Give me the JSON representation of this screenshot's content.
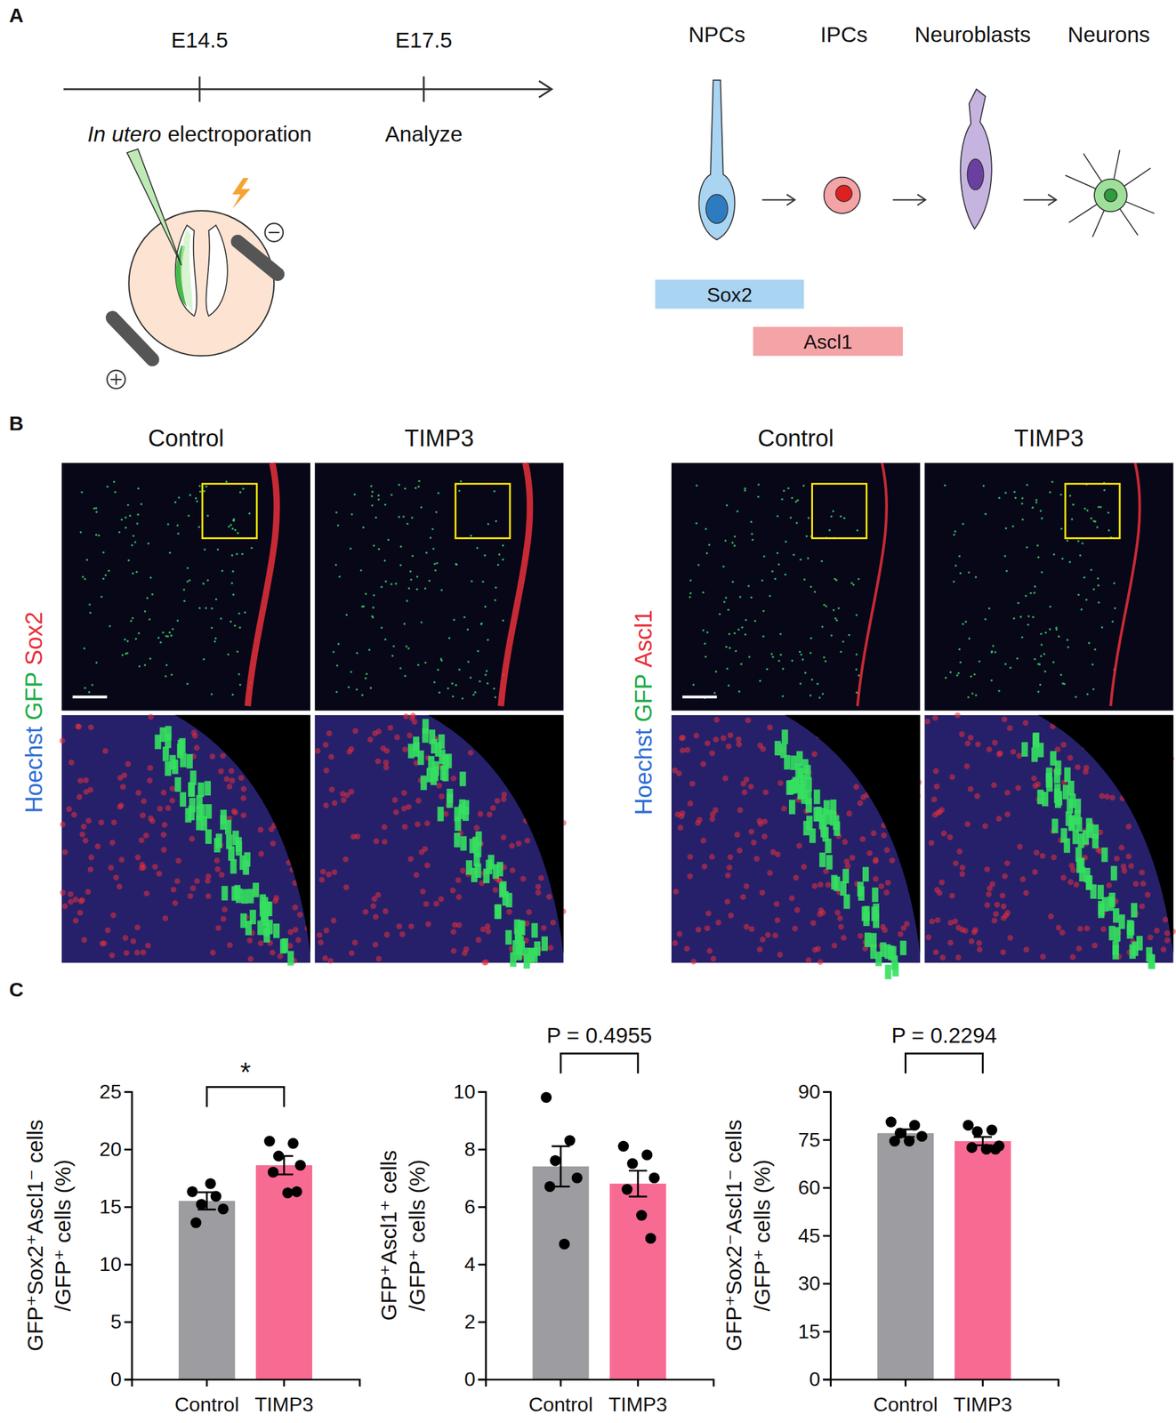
{
  "panel_labels": [
    "A",
    "B",
    "C"
  ],
  "panel_a": {
    "timeline": [
      {
        "stage": "E14.5",
        "label_italic": "In utero",
        "label": "electroporation"
      },
      {
        "stage": "E17.5",
        "label": "Analyze"
      }
    ],
    "cell_types": [
      "NPCs",
      "IPCs",
      "Neuroblasts",
      "Neurons"
    ],
    "markers": [
      {
        "name": "Sox2",
        "color": "#a9d4f2"
      },
      {
        "name": "Ascl1",
        "color": "#f4a3a6"
      }
    ]
  },
  "panel_b": {
    "stains": [
      {
        "name": "Hoechst",
        "color": "#2f6fd6"
      },
      {
        "name": "GFP",
        "color": "#1fae4a"
      }
    ],
    "groups": [
      {
        "marker": "Sox2",
        "color": "#e8303a",
        "conditions": [
          "Control",
          "TIMP3"
        ]
      },
      {
        "marker": "Ascl1",
        "color": "#e8303a",
        "conditions": [
          "Control",
          "TIMP3"
        ]
      }
    ]
  },
  "chart_data": [
    {
      "type": "bar",
      "y_label": [
        "GFP⁺Sox2⁺Ascl1⁻ cells",
        "/GFP⁺ cells (%)"
      ],
      "categories": [
        "Control",
        "TIMP3"
      ],
      "values": [
        15.5,
        18.6
      ],
      "errors": [
        0.75,
        0.8
      ],
      "points": [
        [
          16.3,
          15.9,
          15.2,
          14.8,
          13.6,
          17.0
        ],
        [
          20.7,
          20.5,
          19.4,
          18.6,
          18.0,
          16.2,
          16.3
        ]
      ],
      "colors": [
        "#9d9da1",
        "#f76b93"
      ],
      "annotation": "*",
      "ylim": [
        0,
        25
      ],
      "yticks": [
        0,
        5,
        10,
        15,
        20,
        25
      ]
    },
    {
      "type": "bar",
      "y_label": [
        "GFP⁺Ascl1⁺ cells",
        "/GFP⁺ cells (%)"
      ],
      "categories": [
        "Control",
        "TIMP3"
      ],
      "values": [
        7.4,
        6.8
      ],
      "errors": [
        0.7,
        0.45
      ],
      "points": [
        [
          9.8,
          8.3,
          7.6,
          7.0,
          6.7,
          4.7
        ],
        [
          8.1,
          7.8,
          7.5,
          7.0,
          6.6,
          5.7,
          4.9
        ]
      ],
      "colors": [
        "#9d9da1",
        "#f76b93"
      ],
      "annotation": "P = 0.4955",
      "ylim": [
        0,
        10
      ],
      "yticks": [
        0,
        2,
        4,
        6,
        8,
        10
      ]
    },
    {
      "type": "bar",
      "y_label": [
        "GFP⁺Sox2⁻Ascl1⁻ cells",
        "/GFP⁺ cells (%)"
      ],
      "categories": [
        "Control",
        "TIMP3"
      ],
      "values": [
        77,
        74.5
      ],
      "errors": [
        1.2,
        1.3
      ],
      "points": [
        [
          80.5,
          79.5,
          77,
          76,
          74.5,
          74.5
        ],
        [
          79.5,
          78,
          77.5,
          73,
          72.5,
          72,
          72
        ]
      ],
      "colors": [
        "#9d9da1",
        "#f76b93"
      ],
      "annotation": "P = 0.2294",
      "ylim": [
        0,
        90
      ],
      "yticks": [
        0,
        15,
        30,
        45,
        60,
        75,
        90
      ]
    }
  ]
}
